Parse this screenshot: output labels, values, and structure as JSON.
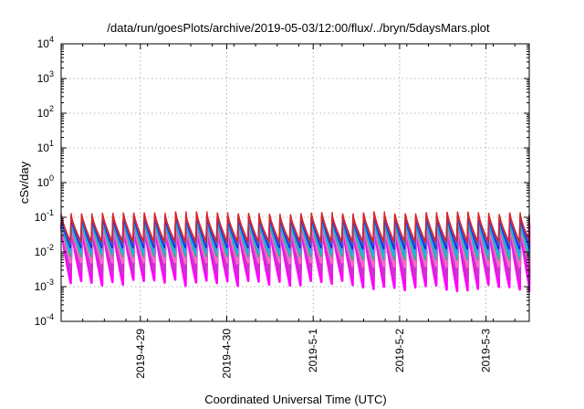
{
  "chart_data": {
    "type": "line",
    "title": "/data/run/goesPlots/archive/2019-05-03/12:00/flux/../bryn/5daysMars.plot",
    "xlabel": "Coordinated Universal Time (UTC)",
    "ylabel": "cSv/day",
    "y_scale": "log",
    "ylim": [
      0.0001,
      10000
    ],
    "y_ticks": [
      {
        "base": "10",
        "exp": "-4",
        "value": 0.0001
      },
      {
        "base": "10",
        "exp": "-3",
        "value": 0.001
      },
      {
        "base": "10",
        "exp": "-2",
        "value": 0.01
      },
      {
        "base": "10",
        "exp": "-1",
        "value": 0.1
      },
      {
        "base": "10",
        "exp": "0",
        "value": 1
      },
      {
        "base": "10",
        "exp": "1",
        "value": 10
      },
      {
        "base": "10",
        "exp": "2",
        "value": 100
      },
      {
        "base": "10",
        "exp": "3",
        "value": 1000
      },
      {
        "base": "10",
        "exp": "4",
        "value": 10000
      }
    ],
    "xlim": [
      "2019-04-28 02:00",
      "2019-05-03 12:00"
    ],
    "x_ticks": [
      {
        "label": "2019-4-29",
        "value": "2019-04-29 00:00"
      },
      {
        "label": "2019-4-30",
        "value": "2019-04-30 00:00"
      },
      {
        "label": "2019-5-1",
        "value": "2019-05-01 00:00"
      },
      {
        "label": "2019-5-2",
        "value": "2019-05-02 00:00"
      },
      {
        "label": "2019-5-3",
        "value": "2019-05-03 00:00"
      }
    ],
    "grid": true,
    "series_colors": [
      "#ff00ff",
      "#cc33cc",
      "#ff66cc",
      "#33aa88",
      "#00cccc",
      "#3399ff",
      "#2222cc",
      "#4455dd",
      "#dd2222"
    ],
    "pattern": {
      "period_hours": 2.9,
      "peak_value": 0.12,
      "trough_upper_series": 0.02,
      "trough_lower_series": 0.004,
      "deepest_trough": 0.0013
    }
  }
}
